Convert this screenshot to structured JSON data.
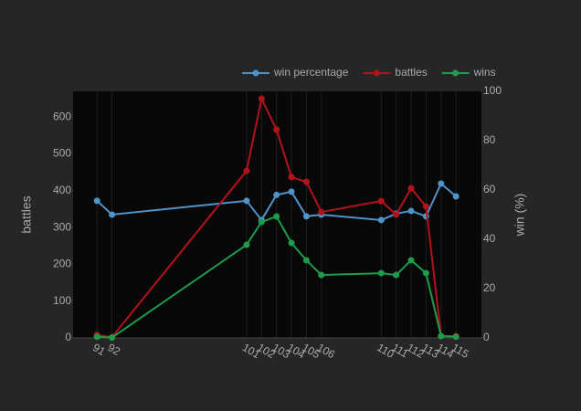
{
  "chart_data": {
    "type": "line",
    "x": [
      91,
      92,
      101,
      102,
      103,
      104,
      105,
      106,
      110,
      111,
      112,
      113,
      114,
      115
    ],
    "xlim": [
      89.4,
      116.7
    ],
    "xticks": [
      91,
      92,
      101,
      102,
      103,
      104,
      105,
      106,
      110,
      111,
      112,
      113,
      114,
      115
    ],
    "ylabel": "battles",
    "ylim": [
      0,
      670
    ],
    "yticks": [
      0,
      100,
      200,
      300,
      400,
      500,
      600
    ],
    "y2label": "win (%)",
    "y2lim": [
      0,
      100
    ],
    "y2ticks": [
      0,
      20,
      40,
      60,
      80,
      100
    ],
    "grid": true,
    "legend": "top-right",
    "series": [
      {
        "name": "win percentage",
        "color": "#4e93c9",
        "axis": "y2",
        "values": [
          55.6,
          50,
          55.6,
          47.8,
          58,
          59.3,
          49.3,
          50,
          47.8,
          50.4,
          51.5,
          49.3,
          62.6,
          57.4
        ]
      },
      {
        "name": "battles",
        "color": "#b3121c",
        "values": [
          8,
          2,
          454,
          650,
          566,
          437,
          424,
          342,
          372,
          335,
          407,
          357,
          5,
          5
        ]
      },
      {
        "name": "wins",
        "color": "#1e9c4a",
        "values": [
          3,
          1,
          253,
          315,
          330,
          258,
          211,
          171,
          176,
          171,
          211,
          176,
          5,
          3
        ]
      }
    ]
  }
}
